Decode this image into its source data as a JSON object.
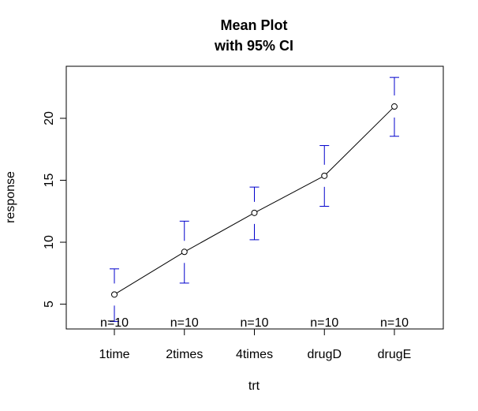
{
  "chart_data": {
    "type": "line",
    "title": "Mean Plot",
    "subtitle": "with 95% CI",
    "xlabel": "trt",
    "ylabel": "response",
    "categories": [
      "1time",
      "2times",
      "4times",
      "drugD",
      "drugE"
    ],
    "means": [
      5.78,
      9.22,
      12.37,
      15.36,
      20.95
    ],
    "ci_lower": [
      3.6,
      6.7,
      10.2,
      12.9,
      18.55
    ],
    "ci_upper": [
      7.85,
      11.7,
      14.45,
      17.8,
      23.3
    ],
    "n_labels": [
      "n=10",
      "n=10",
      "n=10",
      "n=10",
      "n=10"
    ],
    "y_ticks": [
      5,
      10,
      15,
      20
    ],
    "ylim": [
      3.0,
      24.2
    ],
    "grid": false,
    "legend": "none",
    "colors": {
      "line": "#000000",
      "points": "#000000",
      "error_bars": "#0000CC",
      "frame": "#000000"
    }
  }
}
